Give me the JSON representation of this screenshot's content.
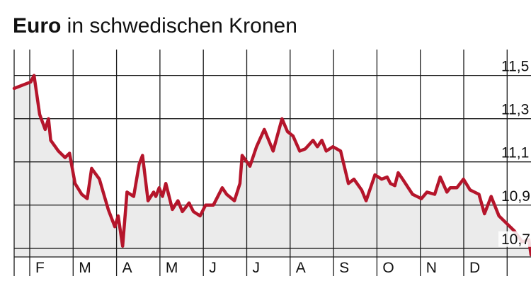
{
  "title": {
    "bold": "Euro",
    "rest": " in schwedischen Kronen"
  },
  "colors": {
    "line": "#b5152b",
    "area": "#ebebeb",
    "grid": "#1a1a1a"
  },
  "chart_data": {
    "type": "area",
    "title": "Euro in schwedischen Kronen",
    "xlabel": "",
    "ylabel": "",
    "ylim": [
      10.66,
      11.62
    ],
    "y_ticks": [
      {
        "value": 11.5,
        "label": "11,5"
      },
      {
        "value": 11.3,
        "label": "11,3"
      },
      {
        "value": 11.1,
        "label": "11,1"
      },
      {
        "value": 10.9,
        "label": "10,9"
      },
      {
        "value": 10.7,
        "label": "10,7"
      }
    ],
    "months": [
      "F",
      "M",
      "A",
      "M",
      "J",
      "J",
      "A",
      "S",
      "O",
      "N",
      "D"
    ],
    "grid": true,
    "series": [
      {
        "values": [
          [
            0.2,
            11.44
          ],
          [
            0.95,
            11.47
          ],
          [
            1.1,
            11.5
          ],
          [
            1.35,
            11.32
          ],
          [
            1.6,
            11.25
          ],
          [
            1.75,
            11.3
          ],
          [
            1.85,
            11.2
          ],
          [
            2.2,
            11.15
          ],
          [
            2.5,
            11.12
          ],
          [
            2.7,
            11.14
          ],
          [
            2.95,
            11.0
          ],
          [
            3.25,
            10.95
          ],
          [
            3.5,
            10.93
          ],
          [
            3.7,
            11.07
          ],
          [
            4.05,
            11.02
          ],
          [
            4.45,
            10.88
          ],
          [
            4.75,
            10.8
          ],
          [
            4.9,
            10.85
          ],
          [
            5.1,
            10.71
          ],
          [
            5.3,
            10.96
          ],
          [
            5.6,
            10.94
          ],
          [
            5.85,
            11.09
          ],
          [
            6.0,
            11.13
          ],
          [
            6.25,
            10.92
          ],
          [
            6.5,
            10.96
          ],
          [
            6.6,
            10.94
          ],
          [
            6.75,
            10.98
          ],
          [
            6.9,
            10.94
          ],
          [
            7.05,
            11.0
          ],
          [
            7.35,
            10.88
          ],
          [
            7.6,
            10.92
          ],
          [
            7.8,
            10.87
          ],
          [
            8.1,
            10.91
          ],
          [
            8.3,
            10.87
          ],
          [
            8.6,
            10.85
          ],
          [
            8.85,
            10.9
          ],
          [
            9.2,
            10.9
          ],
          [
            9.6,
            10.98
          ],
          [
            9.8,
            10.95
          ],
          [
            10.15,
            10.92
          ],
          [
            10.4,
            11.0
          ],
          [
            10.5,
            11.13
          ],
          [
            10.85,
            11.08
          ],
          [
            11.15,
            11.17
          ],
          [
            11.5,
            11.25
          ],
          [
            11.9,
            11.15
          ],
          [
            12.3,
            11.3
          ],
          [
            12.55,
            11.24
          ],
          [
            12.8,
            11.22
          ],
          [
            13.1,
            11.15
          ],
          [
            13.35,
            11.16
          ],
          [
            13.7,
            11.2
          ],
          [
            13.9,
            11.17
          ],
          [
            14.1,
            11.2
          ],
          [
            14.3,
            11.15
          ],
          [
            14.6,
            11.17
          ],
          [
            14.95,
            11.15
          ],
          [
            15.3,
            11.0
          ],
          [
            15.55,
            11.02
          ],
          [
            15.9,
            10.97
          ],
          [
            16.1,
            10.92
          ],
          [
            16.5,
            11.04
          ],
          [
            16.8,
            11.02
          ],
          [
            17.05,
            11.03
          ],
          [
            17.2,
            11.0
          ],
          [
            17.4,
            10.99
          ],
          [
            17.55,
            11.05
          ],
          [
            17.75,
            11.02
          ],
          [
            18.2,
            10.95
          ],
          [
            18.6,
            10.93
          ],
          [
            18.85,
            10.96
          ],
          [
            19.2,
            10.95
          ],
          [
            19.45,
            11.03
          ],
          [
            19.75,
            10.96
          ],
          [
            19.9,
            10.98
          ],
          [
            20.2,
            10.98
          ],
          [
            20.5,
            11.02
          ],
          [
            20.8,
            10.97
          ],
          [
            21.2,
            10.95
          ],
          [
            21.45,
            10.86
          ],
          [
            21.75,
            10.94
          ],
          [
            22.1,
            10.85
          ],
          [
            22.5,
            10.81
          ],
          [
            22.8,
            10.78
          ],
          [
            23.15,
            10.73
          ],
          [
            23.45,
            10.74
          ],
          [
            23.55,
            10.67
          ]
        ]
      }
    ]
  }
}
